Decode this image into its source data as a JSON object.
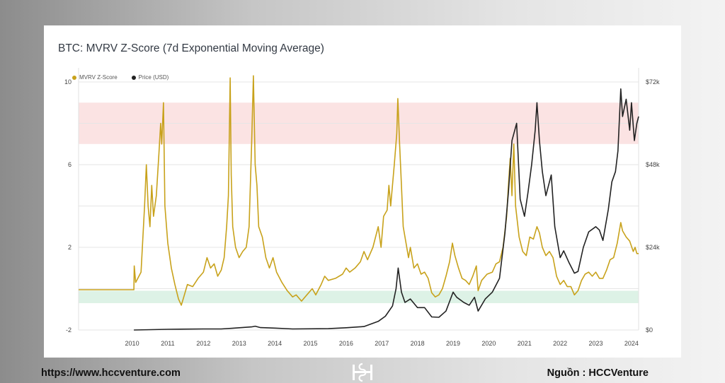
{
  "chart_data": {
    "type": "line",
    "title": "BTC: MVRV Z-Score (7d Exponential Moving Average)",
    "legend": {
      "placement": "top-left"
    },
    "x_ticks": [
      "2010",
      "2011",
      "2012",
      "2013",
      "2014",
      "2015",
      "2016",
      "2017",
      "2018",
      "2019",
      "2020",
      "2021",
      "2022",
      "2023",
      "2024"
    ],
    "x_range": [
      2009.0,
      2024.7
    ],
    "y_left": {
      "ticks": [
        "10",
        "6",
        "2",
        "-2"
      ],
      "range": [
        -2,
        10
      ]
    },
    "y_right": {
      "ticks": [
        "$72k",
        "$48k",
        "$24k",
        "$0"
      ],
      "range": [
        0,
        72000
      ]
    },
    "zones": [
      {
        "name": "red-zone",
        "from": 7,
        "to": 9,
        "color": "#fbe3e3"
      },
      {
        "name": "green-zone",
        "from": -0.7,
        "to": -0.1,
        "color": "#ddf2e6"
      }
    ],
    "series": [
      {
        "name": "MVRV Z-Score",
        "axis": "left",
        "color": "#c8a21b",
        "points": [
          [
            2009.0,
            -0.05
          ],
          [
            2010.55,
            -0.05
          ],
          [
            2010.56,
            1.1
          ],
          [
            2010.6,
            0.3
          ],
          [
            2010.75,
            0.8
          ],
          [
            2010.85,
            4.0
          ],
          [
            2010.9,
            6.0
          ],
          [
            2010.95,
            4.0
          ],
          [
            2011.0,
            3.0
          ],
          [
            2011.05,
            5.0
          ],
          [
            2011.1,
            3.5
          ],
          [
            2011.18,
            4.5
          ],
          [
            2011.25,
            6.5
          ],
          [
            2011.3,
            8.0
          ],
          [
            2011.33,
            7.0
          ],
          [
            2011.38,
            9.0
          ],
          [
            2011.42,
            4.0
          ],
          [
            2011.5,
            2.2
          ],
          [
            2011.6,
            1.0
          ],
          [
            2011.7,
            0.2
          ],
          [
            2011.8,
            -0.5
          ],
          [
            2011.88,
            -0.8
          ],
          [
            2011.95,
            -0.4
          ],
          [
            2012.05,
            0.2
          ],
          [
            2012.2,
            0.1
          ],
          [
            2012.35,
            0.5
          ],
          [
            2012.5,
            0.8
          ],
          [
            2012.6,
            1.5
          ],
          [
            2012.7,
            1.0
          ],
          [
            2012.8,
            1.2
          ],
          [
            2012.9,
            0.6
          ],
          [
            2013.0,
            0.9
          ],
          [
            2013.08,
            1.5
          ],
          [
            2013.15,
            3.0
          ],
          [
            2013.2,
            4.5
          ],
          [
            2013.25,
            10.2
          ],
          [
            2013.28,
            5.5
          ],
          [
            2013.32,
            3.0
          ],
          [
            2013.4,
            2.0
          ],
          [
            2013.5,
            1.5
          ],
          [
            2013.6,
            1.8
          ],
          [
            2013.7,
            2.0
          ],
          [
            2013.78,
            3.0
          ],
          [
            2013.85,
            7.0
          ],
          [
            2013.9,
            10.3
          ],
          [
            2013.95,
            6.0
          ],
          [
            2014.0,
            5.0
          ],
          [
            2014.05,
            3.0
          ],
          [
            2014.15,
            2.5
          ],
          [
            2014.25,
            1.5
          ],
          [
            2014.35,
            1.0
          ],
          [
            2014.45,
            1.5
          ],
          [
            2014.55,
            0.8
          ],
          [
            2014.7,
            0.3
          ],
          [
            2014.85,
            -0.1
          ],
          [
            2015.0,
            -0.4
          ],
          [
            2015.1,
            -0.3
          ],
          [
            2015.25,
            -0.6
          ],
          [
            2015.4,
            -0.3
          ],
          [
            2015.55,
            0.0
          ],
          [
            2015.65,
            -0.3
          ],
          [
            2015.8,
            0.2
          ],
          [
            2015.9,
            0.6
          ],
          [
            2016.0,
            0.4
          ],
          [
            2016.2,
            0.5
          ],
          [
            2016.4,
            0.7
          ],
          [
            2016.5,
            1.0
          ],
          [
            2016.6,
            0.8
          ],
          [
            2016.75,
            1.0
          ],
          [
            2016.9,
            1.3
          ],
          [
            2017.0,
            1.8
          ],
          [
            2017.1,
            1.4
          ],
          [
            2017.25,
            2.0
          ],
          [
            2017.4,
            3.0
          ],
          [
            2017.48,
            2.0
          ],
          [
            2017.55,
            3.5
          ],
          [
            2017.65,
            3.8
          ],
          [
            2017.7,
            5.0
          ],
          [
            2017.75,
            4.0
          ],
          [
            2017.85,
            6.0
          ],
          [
            2017.92,
            7.5
          ],
          [
            2017.95,
            9.2
          ],
          [
            2018.0,
            7.0
          ],
          [
            2018.05,
            5.0
          ],
          [
            2018.1,
            3.0
          ],
          [
            2018.15,
            2.5
          ],
          [
            2018.25,
            1.5
          ],
          [
            2018.3,
            2.0
          ],
          [
            2018.4,
            1.0
          ],
          [
            2018.5,
            1.2
          ],
          [
            2018.6,
            0.7
          ],
          [
            2018.7,
            0.8
          ],
          [
            2018.8,
            0.5
          ],
          [
            2018.9,
            -0.2
          ],
          [
            2019.0,
            -0.4
          ],
          [
            2019.1,
            -0.3
          ],
          [
            2019.2,
            0.0
          ],
          [
            2019.3,
            0.6
          ],
          [
            2019.4,
            1.3
          ],
          [
            2019.48,
            2.2
          ],
          [
            2019.55,
            1.6
          ],
          [
            2019.65,
            1.0
          ],
          [
            2019.75,
            0.5
          ],
          [
            2019.85,
            0.4
          ],
          [
            2019.95,
            0.2
          ],
          [
            2020.05,
            0.6
          ],
          [
            2020.15,
            1.1
          ],
          [
            2020.2,
            -0.1
          ],
          [
            2020.3,
            0.4
          ],
          [
            2020.45,
            0.7
          ],
          [
            2020.6,
            0.8
          ],
          [
            2020.7,
            1.2
          ],
          [
            2020.8,
            1.3
          ],
          [
            2020.9,
            2.0
          ],
          [
            2021.0,
            3.5
          ],
          [
            2021.05,
            5.0
          ],
          [
            2021.1,
            6.3
          ],
          [
            2021.15,
            4.5
          ],
          [
            2021.2,
            7.0
          ],
          [
            2021.25,
            4.0
          ],
          [
            2021.35,
            2.5
          ],
          [
            2021.45,
            1.8
          ],
          [
            2021.55,
            1.6
          ],
          [
            2021.65,
            2.5
          ],
          [
            2021.75,
            2.4
          ],
          [
            2021.85,
            3.0
          ],
          [
            2021.92,
            2.7
          ],
          [
            2022.0,
            2.0
          ],
          [
            2022.1,
            1.6
          ],
          [
            2022.2,
            1.8
          ],
          [
            2022.3,
            1.5
          ],
          [
            2022.4,
            0.6
          ],
          [
            2022.5,
            0.2
          ],
          [
            2022.6,
            0.4
          ],
          [
            2022.7,
            0.1
          ],
          [
            2022.8,
            0.1
          ],
          [
            2022.9,
            -0.3
          ],
          [
            2023.0,
            -0.1
          ],
          [
            2023.1,
            0.4
          ],
          [
            2023.2,
            0.7
          ],
          [
            2023.3,
            0.8
          ],
          [
            2023.4,
            0.6
          ],
          [
            2023.5,
            0.8
          ],
          [
            2023.6,
            0.5
          ],
          [
            2023.7,
            0.5
          ],
          [
            2023.8,
            0.9
          ],
          [
            2023.9,
            1.4
          ],
          [
            2024.0,
            1.5
          ],
          [
            2024.1,
            2.2
          ],
          [
            2024.2,
            3.2
          ],
          [
            2024.25,
            2.8
          ],
          [
            2024.35,
            2.5
          ],
          [
            2024.45,
            2.3
          ],
          [
            2024.55,
            1.8
          ],
          [
            2024.6,
            2.0
          ],
          [
            2024.65,
            1.7
          ],
          [
            2024.7,
            1.7
          ]
        ]
      },
      {
        "name": "Price (USD)",
        "axis": "right",
        "color": "#222222",
        "points": [
          [
            2010.55,
            0
          ],
          [
            2011.5,
            200
          ],
          [
            2012.5,
            300
          ],
          [
            2013.0,
            300
          ],
          [
            2013.3,
            500
          ],
          [
            2013.85,
            900
          ],
          [
            2013.95,
            1100
          ],
          [
            2014.1,
            700
          ],
          [
            2014.5,
            550
          ],
          [
            2015.0,
            300
          ],
          [
            2016.0,
            400
          ],
          [
            2016.5,
            650
          ],
          [
            2017.0,
            1000
          ],
          [
            2017.4,
            2500
          ],
          [
            2017.6,
            4000
          ],
          [
            2017.8,
            7000
          ],
          [
            2017.9,
            12000
          ],
          [
            2017.96,
            18000
          ],
          [
            2018.05,
            11000
          ],
          [
            2018.15,
            8000
          ],
          [
            2018.3,
            9000
          ],
          [
            2018.5,
            6500
          ],
          [
            2018.7,
            6500
          ],
          [
            2018.9,
            3800
          ],
          [
            2019.1,
            3700
          ],
          [
            2019.3,
            5500
          ],
          [
            2019.5,
            11000
          ],
          [
            2019.6,
            9500
          ],
          [
            2019.8,
            8000
          ],
          [
            2019.95,
            7200
          ],
          [
            2020.1,
            9500
          ],
          [
            2020.2,
            5500
          ],
          [
            2020.4,
            9000
          ],
          [
            2020.6,
            11000
          ],
          [
            2020.8,
            15000
          ],
          [
            2020.95,
            28000
          ],
          [
            2021.05,
            40000
          ],
          [
            2021.15,
            55000
          ],
          [
            2021.28,
            60000
          ],
          [
            2021.38,
            38000
          ],
          [
            2021.5,
            33000
          ],
          [
            2021.6,
            40000
          ],
          [
            2021.7,
            48000
          ],
          [
            2021.8,
            58000
          ],
          [
            2021.85,
            66000
          ],
          [
            2021.92,
            55000
          ],
          [
            2022.0,
            46000
          ],
          [
            2022.1,
            39000
          ],
          [
            2022.25,
            45000
          ],
          [
            2022.35,
            30000
          ],
          [
            2022.5,
            21000
          ],
          [
            2022.6,
            23000
          ],
          [
            2022.75,
            19500
          ],
          [
            2022.9,
            16500
          ],
          [
            2023.0,
            17000
          ],
          [
            2023.15,
            24000
          ],
          [
            2023.3,
            28500
          ],
          [
            2023.5,
            30000
          ],
          [
            2023.6,
            29000
          ],
          [
            2023.7,
            26000
          ],
          [
            2023.85,
            35000
          ],
          [
            2023.95,
            43000
          ],
          [
            2024.05,
            46000
          ],
          [
            2024.12,
            52000
          ],
          [
            2024.2,
            70000
          ],
          [
            2024.25,
            62000
          ],
          [
            2024.35,
            67000
          ],
          [
            2024.45,
            58000
          ],
          [
            2024.5,
            66000
          ],
          [
            2024.58,
            55000
          ],
          [
            2024.65,
            60000
          ],
          [
            2024.7,
            62000
          ]
        ]
      }
    ]
  },
  "footer": {
    "url": "https://www.hccventure.com",
    "source": "Nguồn : HCCVenture"
  },
  "colors": {
    "mvrv": "#c8a21b",
    "price": "#222222",
    "gridline": "#e6e6e6"
  }
}
